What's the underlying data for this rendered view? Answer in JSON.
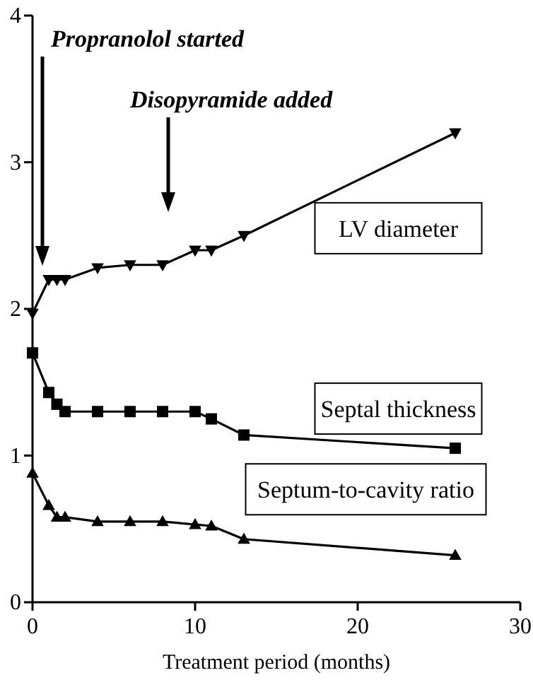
{
  "chart_data": {
    "type": "line",
    "xlabel": "Treatment period (months)",
    "x": [
      0,
      1,
      1.5,
      2,
      4,
      6,
      8,
      10,
      11,
      13,
      26
    ],
    "xlim": [
      0,
      30
    ],
    "xticks": [
      0,
      10,
      20,
      30
    ],
    "ylim": [
      0,
      4
    ],
    "yticks": [
      0,
      1,
      2,
      3,
      4
    ],
    "grid": false,
    "line_style": "solid",
    "series": [
      {
        "name": "LV diameter",
        "color": "#000000",
        "marker": "triangle-down",
        "values": [
          1.97,
          2.2,
          2.2,
          2.2,
          2.28,
          2.3,
          2.3,
          2.4,
          2.4,
          2.5,
          3.2
        ]
      },
      {
        "name": "Septal thickness",
        "color": "#000000",
        "marker": "square",
        "values": [
          1.7,
          1.43,
          1.35,
          1.3,
          1.3,
          1.3,
          1.3,
          1.3,
          1.25,
          1.14,
          1.05
        ]
      },
      {
        "name": "Septum-to-cavity ratio",
        "color": "#000000",
        "marker": "triangle",
        "values": [
          0.88,
          0.66,
          0.58,
          0.58,
          0.55,
          0.55,
          0.55,
          0.53,
          0.52,
          0.43,
          0.32
        ]
      }
    ],
    "annotations": [
      "Propranolol started",
      "Disopyramide added"
    ]
  }
}
